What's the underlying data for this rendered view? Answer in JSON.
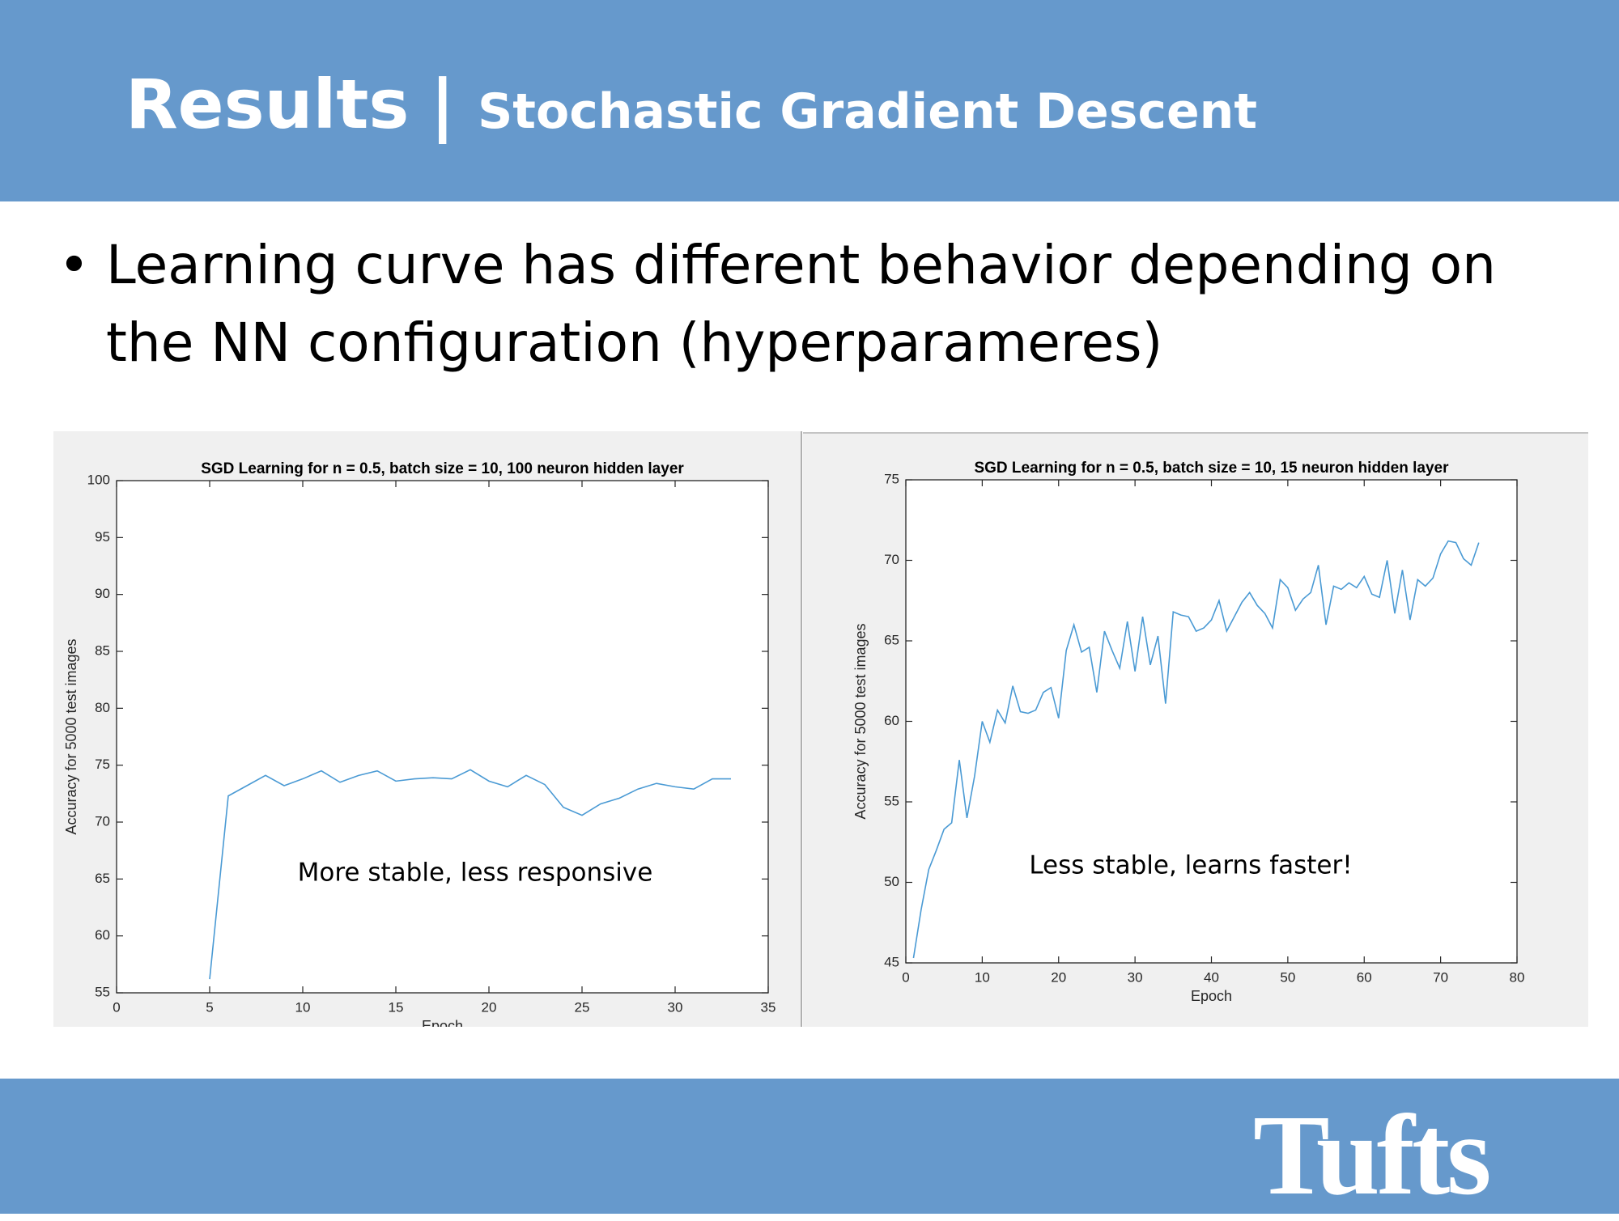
{
  "header": {
    "title": "Results",
    "separator": "|",
    "subtitle": "Stochastic Gradient Descent"
  },
  "bullet": "Learning curve has different behavior depending on the NN configuration (hyperparameres)",
  "chart_data": [
    {
      "type": "line",
      "title": "SGD Learning for n = 0.5, batch size = 10, 100 neuron hidden layer",
      "x_label": "Epoch",
      "y_label": "Accuracy for 5000 test images",
      "annotation": "More stable, less responsive",
      "color": "#4a9ad4",
      "x": [
        5,
        6,
        7,
        8,
        9,
        10,
        11,
        12,
        13,
        14,
        15,
        16,
        17,
        18,
        19,
        20,
        21,
        22,
        23,
        24,
        25,
        26,
        27,
        28,
        29,
        30,
        31,
        32,
        33
      ],
      "values": [
        56.2,
        72.3,
        73.2,
        74.1,
        73.2,
        73.8,
        74.5,
        73.5,
        74.1,
        74.5,
        73.6,
        73.8,
        73.9,
        73.8,
        74.6,
        73.6,
        73.1,
        74.1,
        73.3,
        71.3,
        70.6,
        71.6,
        72.1,
        72.9,
        73.4,
        73.1,
        72.9,
        73.8,
        73.8
      ],
      "xlim": [
        0,
        35
      ],
      "xticks": [
        0,
        5,
        10,
        15,
        20,
        25,
        30,
        35
      ],
      "ylim": [
        55,
        100
      ],
      "yticks": [
        55,
        60,
        65,
        70,
        75,
        80,
        85,
        90,
        95,
        100
      ]
    },
    {
      "type": "line",
      "title": "SGD Learning for n = 0.5, batch size = 10, 15 neuron hidden layer",
      "x_label": "Epoch",
      "y_label": "Accuracy for 5000 test images",
      "annotation": "Less stable, learns faster!",
      "color": "#4a9ad4",
      "x": [
        1,
        2,
        3,
        4,
        5,
        6,
        7,
        8,
        9,
        10,
        11,
        12,
        13,
        14,
        15,
        16,
        17,
        18,
        19,
        20,
        21,
        22,
        23,
        24,
        25,
        26,
        27,
        28,
        29,
        30,
        31,
        32,
        33,
        34,
        35,
        36,
        37,
        38,
        39,
        40,
        41,
        42,
        43,
        44,
        45,
        46,
        47,
        48,
        49,
        50,
        51,
        52,
        53,
        54,
        55,
        56,
        57,
        58,
        59,
        60,
        61,
        62,
        63,
        64,
        65,
        66,
        67,
        68,
        69,
        70,
        71,
        72,
        73,
        74,
        75
      ],
      "values": [
        45.3,
        48.3,
        50.8,
        52,
        53.3,
        53.7,
        57.6,
        54,
        56.6,
        60,
        58.7,
        60.7,
        59.9,
        62.2,
        60.6,
        60.5,
        60.7,
        61.8,
        62.1,
        60.2,
        64.4,
        66,
        64.3,
        64.6,
        61.8,
        65.6,
        64.4,
        63.3,
        66.2,
        63.1,
        66.5,
        63.5,
        65.3,
        61.1,
        66.8,
        66.6,
        66.5,
        65.6,
        65.8,
        66.3,
        67.5,
        65.6,
        66.5,
        67.4,
        68,
        67.2,
        66.7,
        65.8,
        68.8,
        68.3,
        66.9,
        67.6,
        68,
        69.7,
        66,
        68.4,
        68.2,
        68.6,
        68.3,
        69,
        67.9,
        67.7,
        70,
        66.7,
        69.4,
        66.3,
        68.8,
        68.4,
        68.9,
        70.4,
        71.2,
        71.1,
        70.1,
        69.7,
        71.1
      ],
      "xlim": [
        0,
        80
      ],
      "xticks": [
        0,
        10,
        20,
        30,
        40,
        50,
        60,
        70,
        80
      ],
      "ylim": [
        45,
        75
      ],
      "yticks": [
        45,
        50,
        55,
        60,
        65,
        70,
        75
      ]
    }
  ],
  "footer": {
    "logo": "Tufts"
  }
}
